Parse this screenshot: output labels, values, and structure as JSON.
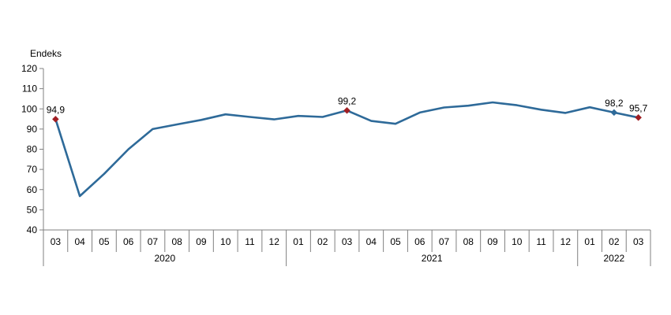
{
  "chart_data": {
    "type": "line",
    "ylabel": "Endeks",
    "ylim": [
      40,
      120
    ],
    "yticks": [
      40,
      50,
      60,
      70,
      80,
      90,
      100,
      110,
      120
    ],
    "categories": [
      "03",
      "04",
      "05",
      "06",
      "07",
      "08",
      "09",
      "10",
      "11",
      "12",
      "01",
      "02",
      "03",
      "04",
      "05",
      "06",
      "07",
      "08",
      "09",
      "10",
      "11",
      "12",
      "01",
      "02",
      "03"
    ],
    "years": [
      {
        "label": "2020",
        "start": 0,
        "end": 9
      },
      {
        "label": "2021",
        "start": 10,
        "end": 21
      },
      {
        "label": "2022",
        "start": 22,
        "end": 24
      }
    ],
    "series": [
      {
        "color": "#2e6a99",
        "values": [
          94.9,
          56.8,
          67.8,
          80.0,
          90.0,
          92.3,
          94.5,
          97.3,
          96.0,
          94.8,
          96.5,
          96.0,
          99.2,
          94.0,
          92.6,
          98.2,
          100.7,
          101.6,
          103.2,
          101.8,
          99.6,
          98.0,
          100.8,
          98.2,
          95.7
        ]
      }
    ],
    "data_labels": [
      {
        "index": 0,
        "text": "94,9",
        "marker_color": "#a01e23"
      },
      {
        "index": 12,
        "text": "99,2",
        "marker_color": "#a01e23"
      },
      {
        "index": 23,
        "text": "98,2",
        "marker_color": "#2e6a99"
      },
      {
        "index": 24,
        "text": "95,7",
        "marker_color": "#a01e23"
      }
    ],
    "grid": false
  }
}
